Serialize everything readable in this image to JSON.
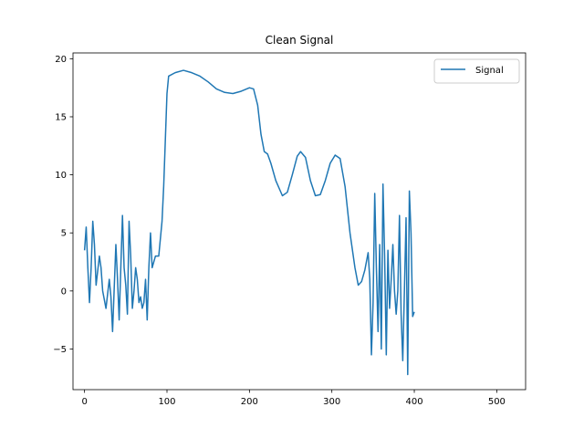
{
  "chart_data": {
    "type": "line",
    "title": "Clean Signal",
    "xlabel": "",
    "ylabel": "",
    "xlim": [
      -14,
      535
    ],
    "ylim": [
      -8.5,
      20.5
    ],
    "xticks": [
      0,
      100,
      200,
      300,
      400,
      500
    ],
    "yticks": [
      -5,
      0,
      5,
      10,
      15,
      20
    ],
    "grid": false,
    "legend": {
      "position": "top-right",
      "entries": [
        "Signal"
      ]
    },
    "series": [
      {
        "name": "Signal",
        "color": "#1f77b4",
        "points": [
          [
            0,
            3.5
          ],
          [
            2,
            5.5
          ],
          [
            4,
            2
          ],
          [
            6,
            -1
          ],
          [
            8,
            2
          ],
          [
            10,
            6
          ],
          [
            12,
            4
          ],
          [
            14,
            0.5
          ],
          [
            18,
            3
          ],
          [
            20,
            2
          ],
          [
            22,
            0
          ],
          [
            26,
            -1.5
          ],
          [
            30,
            1
          ],
          [
            32,
            -0.5
          ],
          [
            34,
            -3.5
          ],
          [
            38,
            4
          ],
          [
            40,
            1
          ],
          [
            42,
            -2.5
          ],
          [
            46,
            6.5
          ],
          [
            48,
            2
          ],
          [
            50,
            0.5
          ],
          [
            52,
            -2
          ],
          [
            54,
            6
          ],
          [
            56,
            3
          ],
          [
            58,
            -1.5
          ],
          [
            60,
            0
          ],
          [
            62,
            2
          ],
          [
            64,
            1
          ],
          [
            66,
            -1
          ],
          [
            68,
            -0.5
          ],
          [
            70,
            -1.5
          ],
          [
            72,
            -1
          ],
          [
            74,
            1
          ],
          [
            76,
            -2.5
          ],
          [
            78,
            2
          ],
          [
            80,
            5
          ],
          [
            82,
            2
          ],
          [
            84,
            2.5
          ],
          [
            86,
            3
          ],
          [
            90,
            3
          ],
          [
            94,
            6
          ],
          [
            96,
            9
          ],
          [
            98,
            13
          ],
          [
            100,
            17
          ],
          [
            102,
            18.5
          ],
          [
            110,
            18.8
          ],
          [
            120,
            19
          ],
          [
            130,
            18.8
          ],
          [
            140,
            18.5
          ],
          [
            150,
            18
          ],
          [
            160,
            17.4
          ],
          [
            170,
            17.1
          ],
          [
            180,
            17
          ],
          [
            190,
            17.2
          ],
          [
            200,
            17.5
          ],
          [
            205,
            17.4
          ],
          [
            210,
            16
          ],
          [
            214,
            13.5
          ],
          [
            218,
            12
          ],
          [
            222,
            11.8
          ],
          [
            226,
            11
          ],
          [
            232,
            9.5
          ],
          [
            240,
            8.2
          ],
          [
            246,
            8.5
          ],
          [
            252,
            10
          ],
          [
            258,
            11.6
          ],
          [
            262,
            12
          ],
          [
            268,
            11.5
          ],
          [
            274,
            9.5
          ],
          [
            280,
            8.2
          ],
          [
            286,
            8.3
          ],
          [
            292,
            9.5
          ],
          [
            298,
            11
          ],
          [
            304,
            11.7
          ],
          [
            310,
            11.4
          ],
          [
            316,
            9
          ],
          [
            322,
            5
          ],
          [
            328,
            2
          ],
          [
            332,
            0.5
          ],
          [
            336,
            0.8
          ],
          [
            340,
            1.8
          ],
          [
            344,
            3.3
          ],
          [
            346,
            1
          ],
          [
            348,
            -5.5
          ],
          [
            350,
            -1
          ],
          [
            352,
            8.4
          ],
          [
            354,
            2
          ],
          [
            356,
            -3.5
          ],
          [
            358,
            4
          ],
          [
            360,
            -5
          ],
          [
            362,
            9.2
          ],
          [
            364,
            3
          ],
          [
            366,
            -5.5
          ],
          [
            368,
            3.5
          ],
          [
            370,
            -1.5
          ],
          [
            372,
            1
          ],
          [
            374,
            4
          ],
          [
            376,
            0
          ],
          [
            378,
            -2
          ],
          [
            380,
            0
          ],
          [
            382,
            6.5
          ],
          [
            384,
            -2
          ],
          [
            386,
            -6
          ],
          [
            388,
            0
          ],
          [
            390,
            6.3
          ],
          [
            392,
            -7.2
          ],
          [
            394,
            8.6
          ],
          [
            396,
            5
          ],
          [
            398,
            -2.2
          ],
          [
            400,
            -1.8
          ]
        ]
      }
    ]
  }
}
